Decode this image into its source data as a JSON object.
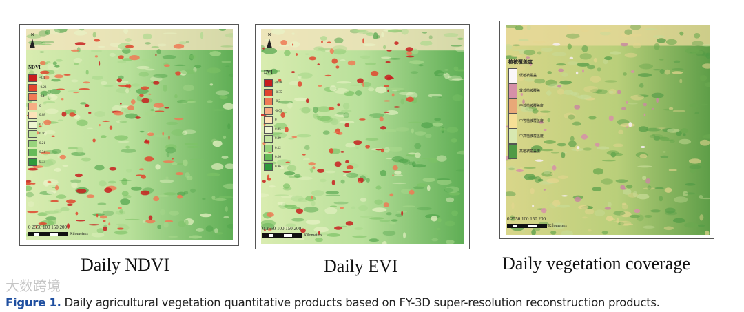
{
  "panels": [
    {
      "id": "ndvi",
      "title": "Daily NDVI",
      "legend_title": "NDVI",
      "legend": [
        {
          "label": "-0.4",
          "color": "#c81e1e"
        },
        {
          "label": "-0.23",
          "color": "#e0452e"
        },
        {
          "label": "-0.1",
          "color": "#ef7a55"
        },
        {
          "label": "0",
          "color": "#f6ad84"
        },
        {
          "label": "0.08",
          "color": "#fde3b8"
        },
        {
          "label": "0.1",
          "color": "#eef5cf"
        },
        {
          "label": "0.16",
          "color": "#c4e6a0"
        },
        {
          "label": "0.21",
          "color": "#98d47c"
        },
        {
          "label": "0.34",
          "color": "#66bb58"
        },
        {
          "label": "0.73",
          "color": "#2f9a3c"
        }
      ],
      "north": "N",
      "scale_ticks": "0 2550  100  150  200",
      "scale_unit": "Kilometers"
    },
    {
      "id": "evi",
      "title": "Daily EVI",
      "legend_title": "EVI",
      "legend": [
        {
          "label": "-0.58",
          "color": "#c81e1e"
        },
        {
          "label": "-0.35",
          "color": "#e0452e"
        },
        {
          "label": "-0.3",
          "color": "#ef7a55"
        },
        {
          "label": "-0.09",
          "color": "#f6ad84"
        },
        {
          "label": "0",
          "color": "#fde3b8"
        },
        {
          "label": "0.05",
          "color": "#eef5cf"
        },
        {
          "label": "0.09",
          "color": "#c4e6a0"
        },
        {
          "label": "0.12",
          "color": "#98d47c"
        },
        {
          "label": "0.26",
          "color": "#66bb58"
        },
        {
          "label": "0.96",
          "color": "#2f9a3c"
        }
      ],
      "north": "N",
      "scale_ticks": "0 2550  100  150  200",
      "scale_unit": "Kilometers"
    },
    {
      "id": "coverage",
      "title": "Daily vegetation coverage",
      "legend_title": "植被覆盖度",
      "legend": [
        {
          "label": "低植被覆盖",
          "color": "#fbf6f8"
        },
        {
          "label": "较低植被覆盖",
          "color": "#d690a8"
        },
        {
          "label": "中低植被覆盖度",
          "color": "#e8a878"
        },
        {
          "label": "中等植被覆盖度",
          "color": "#f6df96"
        },
        {
          "label": "中高植被覆盖度",
          "color": "#d8e8b0"
        },
        {
          "label": "高植被覆盖度",
          "color": "#4f9a45"
        }
      ],
      "north": "N",
      "scale_ticks": "0 2550  100  150  200",
      "scale_unit": "Kilometers"
    }
  ],
  "watermark": "大数跨境",
  "caption": {
    "label": "Figure 1.",
    "text": " Daily agricultural vegetation quantitative products based on FY-3D super-resolution reconstruction products."
  }
}
